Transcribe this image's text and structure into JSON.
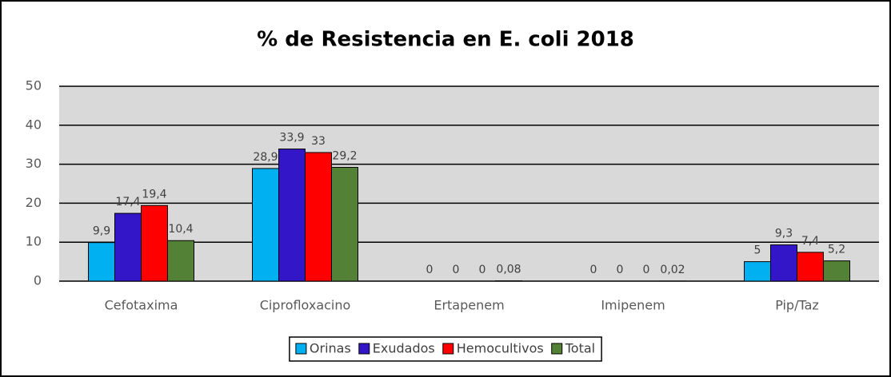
{
  "chart_data": {
    "type": "bar",
    "title": "% de Resistencia en E. coli 2018",
    "categories": [
      "Cefotaxima",
      "Ciprofloxacino",
      "Ertapenem",
      "Imipenem",
      "Pip/Taz"
    ],
    "series": [
      {
        "name": "Orinas",
        "color": "#00b0f0",
        "values": [
          9.9,
          28.9,
          0,
          0,
          5
        ],
        "value_labels": [
          "9,9",
          "28,9",
          "0",
          "0",
          "5"
        ]
      },
      {
        "name": "Exudados",
        "color": "#3316c8",
        "values": [
          17.4,
          33.9,
          0,
          0,
          9.3
        ],
        "value_labels": [
          "17,4",
          "33,9",
          "0",
          "0",
          "9,3"
        ]
      },
      {
        "name": "Hemocultivos",
        "color": "#ff0000",
        "values": [
          19.4,
          33,
          0,
          0,
          7.4
        ],
        "value_labels": [
          "19,4",
          "33",
          "0",
          "0",
          "7,4"
        ]
      },
      {
        "name": "Total",
        "color": "#538135",
        "values": [
          10.4,
          29.2,
          0.08,
          0.02,
          5.2
        ],
        "value_labels": [
          "10,4",
          "29,2",
          "0,08",
          "0,02",
          "5,2"
        ]
      }
    ],
    "ylim": [
      0,
      50
    ],
    "yticks": [
      0,
      10,
      20,
      30,
      40,
      50
    ],
    "grid": true,
    "legend": "bottom"
  }
}
